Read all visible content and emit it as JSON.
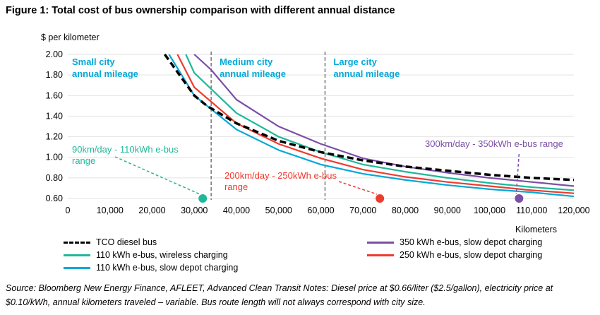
{
  "chart_data": {
    "type": "line",
    "title": "Figure 1:  Total cost of bus ownership comparison with different annual distance",
    "ylabel": "$ per kilometer",
    "xlabel": "Kilometers",
    "xlim": [
      0,
      120000
    ],
    "ylim": [
      0.6,
      2.0
    ],
    "x_ticks": [
      "0",
      "10,000",
      "20,000",
      "30,000",
      "40,000",
      "50,000",
      "60,000",
      "70,000",
      "80,000",
      "90,000",
      "100,000",
      "110,000",
      "120,000"
    ],
    "y_ticks": [
      "0.60",
      "0.80",
      "1.00",
      "1.20",
      "1.40",
      "1.60",
      "1.80",
      "2.00"
    ],
    "grid": "horizontal",
    "series": [
      {
        "name": "TCO diesel bus",
        "color": "#000000",
        "dash": true,
        "x": [
          23000,
          30000,
          33000,
          40000,
          50000,
          60000,
          70000,
          80000,
          90000,
          100000,
          110000,
          120000
        ],
        "y": [
          2.0,
          1.6,
          1.5,
          1.33,
          1.16,
          1.05,
          0.97,
          0.91,
          0.87,
          0.83,
          0.8,
          0.78
        ]
      },
      {
        "name": "350 kWh e-bus, slow depot charging",
        "color": "#7b4fa6",
        "x": [
          30000,
          34000,
          40000,
          50000,
          60000,
          70000,
          80000,
          90000,
          100000,
          110000,
          120000
        ],
        "y": [
          2.0,
          1.85,
          1.56,
          1.3,
          1.13,
          0.99,
          0.91,
          0.85,
          0.8,
          0.76,
          0.72
        ]
      },
      {
        "name": "110 kWh e-bus, wireless charging",
        "color": "#1fb89a",
        "x": [
          28000,
          30000,
          40000,
          50000,
          60000,
          70000,
          80000,
          90000,
          100000,
          110000,
          120000
        ],
        "y": [
          2.0,
          1.82,
          1.43,
          1.2,
          1.05,
          0.93,
          0.86,
          0.8,
          0.75,
          0.71,
          0.68
        ]
      },
      {
        "name": "250 kWh e-bus, slow depot charging",
        "color": "#ee3b2f",
        "x": [
          26000,
          30000,
          40000,
          50000,
          60000,
          70000,
          80000,
          90000,
          100000,
          110000,
          120000
        ],
        "y": [
          2.0,
          1.68,
          1.33,
          1.13,
          0.99,
          0.88,
          0.81,
          0.76,
          0.72,
          0.68,
          0.65
        ]
      },
      {
        "name": "110 kWh e-bus, slow depot charging",
        "color": "#00a8d8",
        "x": [
          24000,
          30000,
          40000,
          50000,
          60000,
          70000,
          80000,
          90000,
          100000,
          110000,
          120000
        ],
        "y": [
          2.0,
          1.6,
          1.27,
          1.07,
          0.93,
          0.84,
          0.78,
          0.73,
          0.69,
          0.66,
          0.62
        ]
      }
    ],
    "vertical_lines": [
      34000,
      61000
    ],
    "regions": [
      {
        "label": "Small city\nannual mileage",
        "line1": "Small city",
        "line2": "annual mileage",
        "x": 1000
      },
      {
        "label": "Medium city",
        "line1": "Medium city",
        "line2": "annual mileage",
        "x": 36000
      },
      {
        "label": "Large city",
        "line1": "Large city",
        "line2": "annual mileage",
        "x": 63000
      }
    ],
    "annotations": [
      {
        "line1": "90km/day - 110kWh e-bus",
        "line2": "range",
        "color": "#1fb89a",
        "point_x": 32000,
        "point_y": 0.6
      },
      {
        "line1": "200km/day - 250kWh e-bus",
        "line2": "range",
        "color": "#ee3b2f",
        "point_x": 74000,
        "point_y": 0.6
      },
      {
        "line1": "300km/day - 350kWh e-bus range",
        "line2": "",
        "color": "#7b4fa6",
        "point_x": 107000,
        "point_y": 0.6
      }
    ]
  },
  "legend": [
    {
      "label": "TCO diesel bus",
      "color": "#000000",
      "dash": true
    },
    {
      "label": "110 kWh e-bus, wireless charging",
      "color": "#1fb89a"
    },
    {
      "label": "110 kWh e-bus, slow depot charging",
      "color": "#00a8d8"
    },
    {
      "label": "350 kWh e-bus, slow depot charging",
      "color": "#7b4fa6"
    },
    {
      "label": "250 kWh e-bus, slow depot charging",
      "color": "#ee3b2f"
    }
  ],
  "source": "Source: Bloomberg New Energy Finance, AFLEET, Advanced Clean Transit Notes: Diesel price at $0.66/liter ($2.5/gallon), electricity price at $0.10/kWh, annual kilometers traveled – variable. Bus route length will not always correspond with city size.",
  "region_color": "#00a8d8"
}
